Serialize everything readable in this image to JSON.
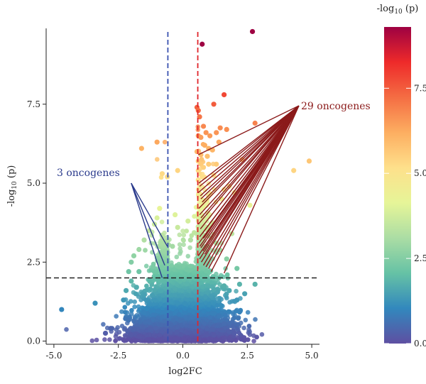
{
  "chart_data": {
    "type": "scatter",
    "title": "",
    "xlabel": "log2FC",
    "ylabel": {
      "prefix": "-log",
      "sub": "10",
      "suffix": " (p)"
    },
    "xlim": [
      -5.3,
      5.3
    ],
    "ylim": [
      -0.1,
      9.9
    ],
    "x_ticks": [
      -5.0,
      -2.5,
      0.0,
      2.5,
      5.0
    ],
    "x_tick_labels": [
      "-5.0",
      "-2.5",
      "0.0",
      "2.5",
      "5.0"
    ],
    "y_ticks": [
      0.0,
      2.5,
      5.0,
      7.5
    ],
    "y_tick_labels": [
      "0.0",
      "2.5",
      "5.0",
      "7.5"
    ],
    "grid": false,
    "thresholds": {
      "vertical_left": {
        "x": -0.58,
        "color": "#3a52b0"
      },
      "vertical_right": {
        "x": 0.58,
        "color": "#e0242a"
      },
      "horizontal": {
        "y": 2.0,
        "color": "#222222"
      }
    },
    "colorbar": {
      "title": {
        "prefix": "-log",
        "sub": "10",
        "suffix": " (p)"
      },
      "min": 0.0,
      "max": 9.3,
      "ticks": [
        0.0,
        2.5,
        5.0,
        7.5
      ],
      "tick_labels": [
        "0.0",
        "2.5",
        "5.0",
        "7.5"
      ],
      "colormap": [
        "#5e4fa2",
        "#3288bd",
        "#66c2a5",
        "#abdda4",
        "#e6f598",
        "#fee08b",
        "#fdae61",
        "#f46d43",
        "#ee2a2a",
        "#9e0142"
      ]
    },
    "annotations": [
      {
        "text": "3 oncogenes",
        "color": "#2a3a8c",
        "anchor": {
          "x": -2.0,
          "y": 5.0
        },
        "line_color": "#2a3a8c",
        "targets": [
          [
            -0.6,
            3.0
          ],
          [
            -0.7,
            2.4
          ],
          [
            -0.8,
            2.0
          ]
        ]
      },
      {
        "text": "29 oncogenes",
        "color": "#8b1a1a",
        "anchor": {
          "x": 4.5,
          "y": 7.45
        },
        "line_color": "#8b1a1a",
        "targets": [
          [
            0.6,
            5.9
          ],
          [
            0.62,
            5.0
          ],
          [
            0.65,
            4.9
          ],
          [
            0.6,
            4.7
          ],
          [
            0.68,
            4.6
          ],
          [
            0.7,
            4.5
          ],
          [
            0.75,
            4.4
          ],
          [
            0.62,
            4.2
          ],
          [
            0.65,
            4.0
          ],
          [
            0.7,
            3.9
          ],
          [
            0.6,
            3.7
          ],
          [
            0.68,
            3.55
          ],
          [
            0.75,
            3.4
          ],
          [
            0.8,
            3.25
          ],
          [
            0.62,
            3.1
          ],
          [
            0.66,
            3.0
          ],
          [
            0.7,
            2.95
          ],
          [
            0.78,
            2.85
          ],
          [
            0.85,
            2.75
          ],
          [
            0.6,
            2.7
          ],
          [
            0.65,
            2.6
          ],
          [
            0.72,
            2.5
          ],
          [
            0.8,
            2.4
          ],
          [
            0.9,
            2.35
          ],
          [
            1.0,
            2.3
          ],
          [
            1.1,
            2.2
          ],
          [
            1.3,
            3.5
          ],
          [
            1.6,
            2.15
          ],
          [
            0.65,
            3.3
          ]
        ]
      }
    ],
    "series": [
      {
        "points": [
          [
            2.7,
            9.8
          ],
          [
            0.75,
            9.4
          ],
          [
            1.2,
            7.5
          ],
          [
            1.6,
            7.8
          ],
          [
            0.55,
            7.4
          ],
          [
            0.6,
            7.3
          ],
          [
            0.65,
            7.1
          ],
          [
            0.8,
            6.8
          ],
          [
            1.45,
            6.75
          ],
          [
            0.9,
            6.6
          ],
          [
            1.05,
            6.5
          ],
          [
            1.3,
            6.6
          ],
          [
            1.7,
            6.7
          ],
          [
            2.8,
            6.9
          ],
          [
            0.6,
            6.5
          ],
          [
            0.7,
            6.45
          ],
          [
            0.85,
            6.2
          ],
          [
            1.0,
            6.1
          ],
          [
            1.15,
            6.05
          ],
          [
            1.4,
            6.3
          ],
          [
            -1.0,
            6.3
          ],
          [
            -1.6,
            6.1
          ],
          [
            0.55,
            6.0
          ],
          [
            0.7,
            5.9
          ],
          [
            0.95,
            5.85
          ],
          [
            0.6,
            5.7
          ],
          [
            0.7,
            5.6
          ],
          [
            0.8,
            5.5
          ],
          [
            1.0,
            5.6
          ],
          [
            1.3,
            5.6
          ],
          [
            2.3,
            5.75
          ],
          [
            4.9,
            5.7
          ],
          [
            4.3,
            5.4
          ],
          [
            0.6,
            5.4
          ],
          [
            0.65,
            5.3
          ],
          [
            0.75,
            5.2
          ],
          [
            1.2,
            5.25
          ],
          [
            -0.2,
            5.4
          ],
          [
            -0.8,
            5.3
          ],
          [
            -0.6,
            5.2
          ],
          [
            0.6,
            5.1
          ],
          [
            1.8,
            4.9
          ],
          [
            1.6,
            4.8
          ],
          [
            2.0,
            4.7
          ],
          [
            2.6,
            4.3
          ],
          [
            1.5,
            4.5
          ],
          [
            1.0,
            4.6
          ],
          [
            -0.9,
            4.2
          ],
          [
            -1.0,
            3.9
          ],
          [
            -1.1,
            3.7
          ],
          [
            -1.3,
            3.5
          ],
          [
            -1.5,
            3.2
          ],
          [
            -1.7,
            2.9
          ],
          [
            -1.9,
            2.7
          ],
          [
            -2.0,
            2.5
          ],
          [
            -2.1,
            2.2
          ],
          [
            1.9,
            3.4
          ],
          [
            1.3,
            3.1
          ],
          [
            1.7,
            2.6
          ],
          [
            2.1,
            2.3
          ],
          [
            2.8,
            1.8
          ],
          [
            1.4,
            2.0
          ],
          [
            1.6,
            1.75
          ],
          [
            1.8,
            1.6
          ],
          [
            2.1,
            1.3
          ],
          [
            -4.7,
            1.0
          ],
          [
            -3.4,
            1.2
          ],
          [
            -2.8,
            0.4
          ],
          [
            -3.0,
            0.25
          ],
          [
            -2.0,
            0.2
          ],
          [
            -1.7,
            0.15
          ],
          [
            -1.3,
            0.6
          ],
          [
            -1.5,
            0.9
          ],
          [
            1.2,
            0.2
          ],
          [
            1.5,
            0.35
          ],
          [
            1.6,
            0.55
          ],
          [
            1.8,
            0.3
          ],
          [
            2.0,
            0.25
          ],
          [
            1.4,
            0.8
          ],
          [
            -2.2,
            1.6
          ],
          [
            -2.0,
            1.9
          ],
          [
            -1.8,
            1.7
          ],
          [
            -1.7,
            2.2
          ],
          [
            -2.3,
            1.3
          ],
          [
            2.4,
            1.5
          ],
          [
            2.2,
            1.8
          ],
          [
            -0.3,
            4.0
          ],
          [
            -0.2,
            3.6
          ],
          [
            -0.4,
            3.0
          ],
          [
            0.3,
            3.2
          ],
          [
            0.2,
            3.8
          ]
        ]
      }
    ],
    "background_cloud": {
      "count": 6500,
      "x_center": 0.0,
      "x_spread": 0.55,
      "y_max": 9.5
    }
  }
}
